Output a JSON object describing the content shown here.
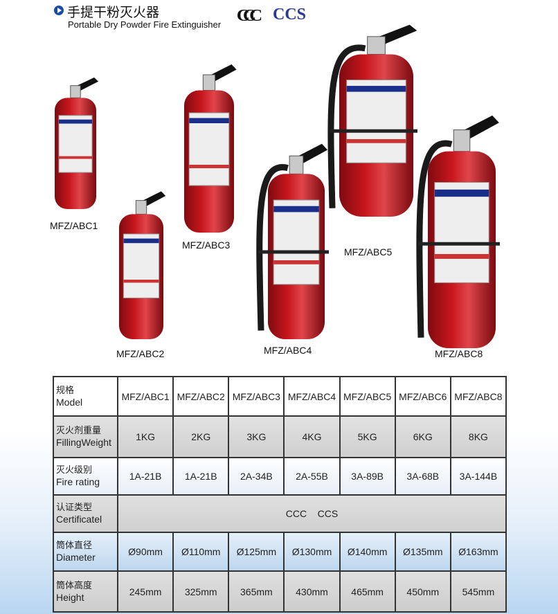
{
  "header": {
    "title_cn": "手提干粉灭火器",
    "title_en": "Portable Dry Powder Fire Extinguisher",
    "logos": [
      "CCC",
      "CCS"
    ]
  },
  "products": [
    {
      "model": "MFZ/ABC1"
    },
    {
      "model": "MFZ/ABC2"
    },
    {
      "model": "MFZ/ABC3"
    },
    {
      "model": "MFZ/ABC4"
    },
    {
      "model": "MFZ/ABC5"
    },
    {
      "model": "MFZ/ABC8"
    }
  ],
  "colors": {
    "body": "#c8161d",
    "accent": "#1a4ea0",
    "ccs": "#2a3b8f"
  },
  "table": {
    "rows": [
      {
        "label_cn": "规格",
        "label_en": "Model",
        "cells": [
          "MFZ/ABC1",
          "MFZ/ABC2",
          "MFZ/ABC3",
          "MFZ/ABC4",
          "MFZ/ABC5",
          "MFZ/ABC6",
          "MFZ/ABC8"
        ]
      },
      {
        "label_cn": "灭火剂重量",
        "label_en": "FillingWeight",
        "cells": [
          "1KG",
          "2KG",
          "3KG",
          "4KG",
          "5KG",
          "6KG",
          "8KG"
        ]
      },
      {
        "label_cn": "灭火级别",
        "label_en": "Fire rating",
        "cells": [
          "1A-21B",
          "1A-21B",
          "2A-34B",
          "2A-55B",
          "3A-89B",
          "3A-68B",
          "3A-144B"
        ]
      },
      {
        "label_cn": "认证类型",
        "label_en": "Certificatel",
        "merged": "CCC    CCS"
      },
      {
        "label_cn": "筒体直径",
        "label_en": "Diameter",
        "cells": [
          "Ø90mm",
          "Ø110mm",
          "Ø125mm",
          "Ø130mm",
          "Ø140mm",
          "Ø135mm",
          "Ø163mm"
        ]
      },
      {
        "label_cn": "筒体高度",
        "label_en": "Height",
        "cells": [
          "245mm",
          "325mm",
          "365mm",
          "430mm",
          "465mm",
          "450mm",
          "545mm"
        ]
      }
    ]
  }
}
